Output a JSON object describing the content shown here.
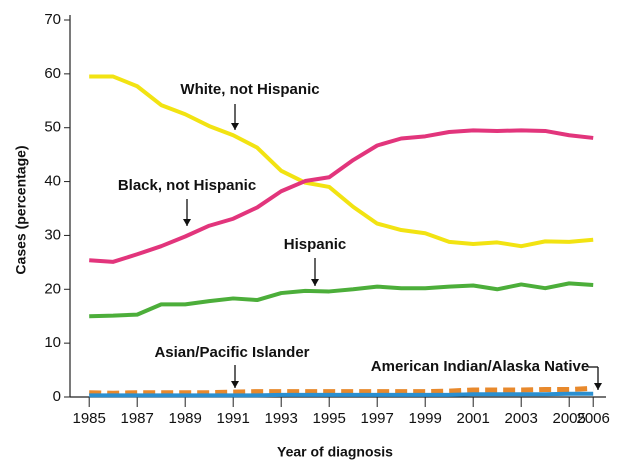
{
  "chart_data": {
    "type": "line",
    "x_label": "Year of diagnosis",
    "y_label": "Cases (percentage)",
    "x": [
      1985,
      1986,
      1987,
      1988,
      1989,
      1990,
      1991,
      1992,
      1993,
      1994,
      1995,
      1996,
      1997,
      1998,
      1999,
      2000,
      2001,
      2002,
      2003,
      2004,
      2005,
      2006
    ],
    "xlim": [
      1984.2,
      2006.2
    ],
    "xticks": [
      1985,
      1987,
      1989,
      1991,
      1993,
      1995,
      1997,
      1999,
      2001,
      2003,
      2005,
      2006
    ],
    "ylim": [
      0,
      70
    ],
    "yticks": [
      0,
      10,
      20,
      30,
      40,
      50,
      60,
      70
    ],
    "series": [
      {
        "name": "White, not Hispanic",
        "color": "#f2e312",
        "dashed": false,
        "values": [
          59.5,
          59.5,
          57.7,
          54.2,
          52.5,
          50.3,
          48.6,
          46.3,
          42,
          39.8,
          39,
          35.3,
          32.2,
          31,
          30.4,
          28.8,
          28.4,
          28.7,
          28,
          28.9,
          28.8,
          29.2
        ]
      },
      {
        "name": "Black, not Hispanic",
        "color": "#e2357c",
        "dashed": false,
        "values": [
          25.4,
          25.1,
          26.5,
          28,
          29.8,
          31.8,
          33.1,
          35.2,
          38.2,
          40.1,
          40.8,
          44,
          46.7,
          48,
          48.4,
          49.2,
          49.5,
          49.4,
          49.5,
          49.4,
          48.6,
          48.1
        ]
      },
      {
        "name": "Hispanic",
        "color": "#4cae3a",
        "dashed": false,
        "values": [
          15,
          15.1,
          15.3,
          17.2,
          17.2,
          17.8,
          18.3,
          18,
          19.3,
          19.7,
          19.6,
          20,
          20.5,
          20.2,
          20.2,
          20.5,
          20.7,
          20,
          20.9,
          20.2,
          21.1,
          20.8
        ]
      },
      {
        "name": "Asian/Pacific Islander",
        "color": "#e8892c",
        "dashed": true,
        "values": [
          0.8,
          0.7,
          0.8,
          0.8,
          0.8,
          0.8,
          0.9,
          1,
          1,
          1,
          1,
          1,
          1,
          1,
          1,
          1.1,
          1.3,
          1.3,
          1.3,
          1.4,
          1.4,
          1.6
        ]
      },
      {
        "name": "American Indian/Alaska Native",
        "color": "#2a8fd0",
        "dashed": false,
        "values": [
          0.3,
          0.3,
          0.3,
          0.3,
          0.3,
          0.3,
          0.3,
          0.3,
          0.4,
          0.4,
          0.4,
          0.4,
          0.4,
          0.4,
          0.4,
          0.4,
          0.5,
          0.5,
          0.5,
          0.5,
          0.6,
          0.6
        ]
      }
    ]
  }
}
